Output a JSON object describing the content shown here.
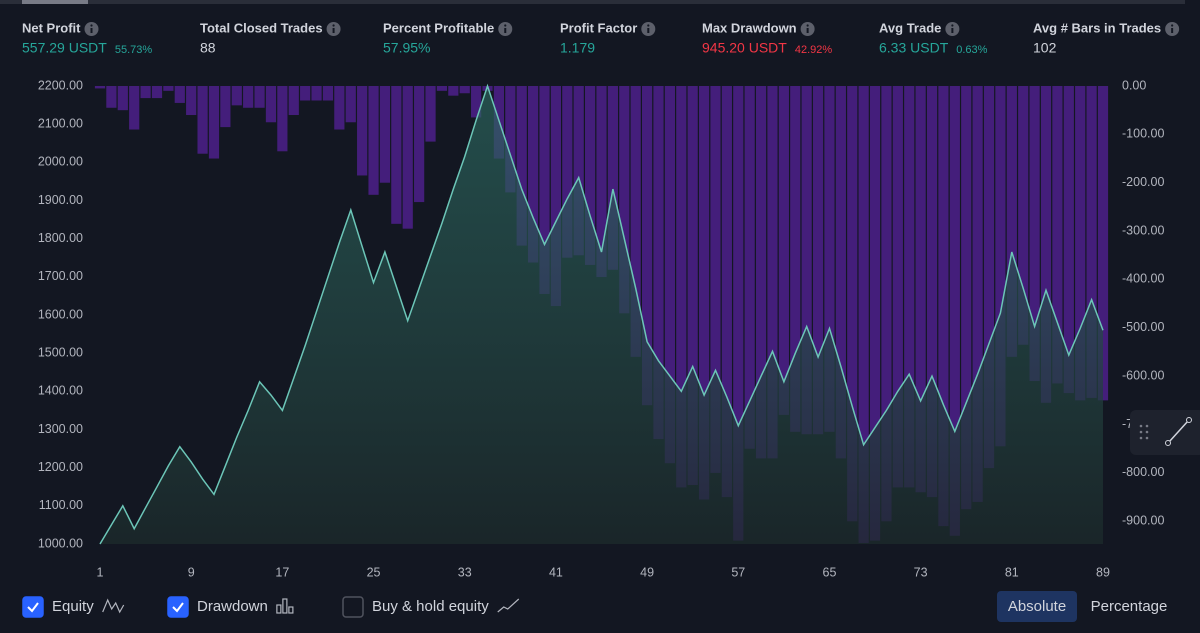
{
  "stats": [
    {
      "label": "Net Profit",
      "value": "557.29 USDT",
      "pct": "55.73%",
      "color": "#26a69a"
    },
    {
      "label": "Total Closed Trades",
      "value": "88",
      "color": "#d1d4dc"
    },
    {
      "label": "Percent Profitable",
      "value": "57.95%",
      "color": "#26a69a"
    },
    {
      "label": "Profit Factor",
      "value": "1.179",
      "color": "#26a69a"
    },
    {
      "label": "Max Drawdown",
      "value": "945.20 USDT",
      "pct": "42.92%",
      "color": "#f23645"
    },
    {
      "label": "Avg Trade",
      "value": "6.33 USDT",
      "pct": "0.63%",
      "color": "#26a69a"
    },
    {
      "label": "Avg # Bars in Trades",
      "value": "102",
      "color": "#d1d4dc"
    }
  ],
  "chart_data": {
    "type": "combo",
    "x": [
      1,
      2,
      3,
      4,
      5,
      6,
      7,
      8,
      9,
      10,
      11,
      12,
      13,
      14,
      15,
      16,
      17,
      18,
      19,
      20,
      21,
      22,
      23,
      24,
      25,
      26,
      27,
      28,
      29,
      30,
      31,
      32,
      33,
      34,
      35,
      36,
      37,
      38,
      39,
      40,
      41,
      42,
      43,
      44,
      45,
      46,
      47,
      48,
      49,
      50,
      51,
      52,
      53,
      54,
      55,
      56,
      57,
      58,
      59,
      60,
      61,
      62,
      63,
      64,
      65,
      66,
      67,
      68,
      69,
      70,
      71,
      72,
      73,
      74,
      75,
      76,
      77,
      78,
      79,
      80,
      81,
      82,
      83,
      84,
      85,
      86,
      87,
      88,
      89
    ],
    "xlim": [
      1,
      89
    ],
    "xticks": [
      1,
      9,
      17,
      25,
      33,
      41,
      49,
      57,
      65,
      73,
      81,
      89
    ],
    "ylim": [
      1000,
      2200
    ],
    "yticks": [
      {
        "value": 1000,
        "label": "1000.00"
      },
      {
        "value": 1100,
        "label": "1100.00"
      },
      {
        "value": 1200,
        "label": "1200.00"
      },
      {
        "value": 1300,
        "label": "1300.00"
      },
      {
        "value": 1400,
        "label": "1400.00"
      },
      {
        "value": 1500,
        "label": "1500.00"
      },
      {
        "value": 1600,
        "label": "1600.00"
      },
      {
        "value": 1700,
        "label": "1700.00"
      },
      {
        "value": 1800,
        "label": "1800.00"
      },
      {
        "value": 1900,
        "label": "1900.00"
      },
      {
        "value": 2000,
        "label": "2000.00"
      },
      {
        "value": 2100,
        "label": "2100.00"
      },
      {
        "value": 2200,
        "label": "2200.00"
      }
    ],
    "y2lim": [
      -947,
      0
    ],
    "y2ticks": [
      {
        "value": 0,
        "label": "0.00"
      },
      {
        "value": -100,
        "label": "-100.00"
      },
      {
        "value": -200,
        "label": "-200.00"
      },
      {
        "value": -300,
        "label": "-300.00"
      },
      {
        "value": -400,
        "label": "-400.00"
      },
      {
        "value": -500,
        "label": "-500.00"
      },
      {
        "value": -600,
        "label": "-600.00"
      },
      {
        "value": -700,
        "label": "-700.00"
      },
      {
        "value": -800,
        "label": "-800.00"
      },
      {
        "value": -900,
        "label": "-900.00"
      }
    ],
    "series": [
      {
        "name": "Drawdown",
        "type": "bar",
        "axis": "y2",
        "color": "#4a1f85",
        "checked": true,
        "values": [
          -5,
          -45,
          -50,
          -90,
          -25,
          -25,
          -10,
          -35,
          -60,
          -140,
          -150,
          -85,
          -40,
          -45,
          -45,
          -75,
          -135,
          -60,
          -30,
          -30,
          -30,
          -90,
          -75,
          -185,
          -225,
          -200,
          -285,
          -295,
          -240,
          -115,
          -10,
          -20,
          -15,
          -65,
          -10,
          -150,
          -220,
          -330,
          -365,
          -430,
          -455,
          -355,
          -350,
          -370,
          -395,
          -380,
          -470,
          -560,
          -660,
          -730,
          -780,
          -830,
          -825,
          -855,
          -800,
          -850,
          -940,
          -750,
          -770,
          -770,
          -680,
          -715,
          -720,
          -720,
          -715,
          -770,
          -900,
          -945,
          -940,
          -900,
          -830,
          -830,
          -840,
          -850,
          -910,
          -930,
          -875,
          -860,
          -790,
          -745,
          -560,
          -535,
          -610,
          -655,
          -615,
          -635,
          -650,
          -645,
          -650
        ]
      },
      {
        "name": "Equity",
        "type": "area",
        "color": "#6cc6b8",
        "checked": true,
        "values": [
          1000,
          1050,
          1100,
          1040,
          1095,
          1150,
          1205,
          1255,
          1215,
          1170,
          1130,
          1205,
          1280,
          1350,
          1425,
          1390,
          1350,
          1435,
          1520,
          1610,
          1700,
          1790,
          1875,
          1780,
          1685,
          1765,
          1675,
          1585,
          1670,
          1755,
          1840,
          1930,
          2015,
          2110,
          2200,
          2110,
          2020,
          1930,
          1855,
          1785,
          1845,
          1905,
          1960,
          1860,
          1765,
          1930,
          1800,
          1670,
          1530,
          1480,
          1440,
          1400,
          1465,
          1390,
          1455,
          1385,
          1310,
          1375,
          1440,
          1505,
          1425,
          1500,
          1570,
          1490,
          1565,
          1465,
          1360,
          1260,
          1305,
          1350,
          1400,
          1445,
          1375,
          1440,
          1365,
          1295,
          1370,
          1445,
          1525,
          1605,
          1765,
          1670,
          1570,
          1665,
          1580,
          1495,
          1565,
          1640,
          1560
        ]
      }
    ],
    "extra_legend": {
      "name": "Buy & hold equity",
      "checked": false
    },
    "scale_modes": [
      "Absolute",
      "Percentage"
    ],
    "selected_scale": 0
  }
}
